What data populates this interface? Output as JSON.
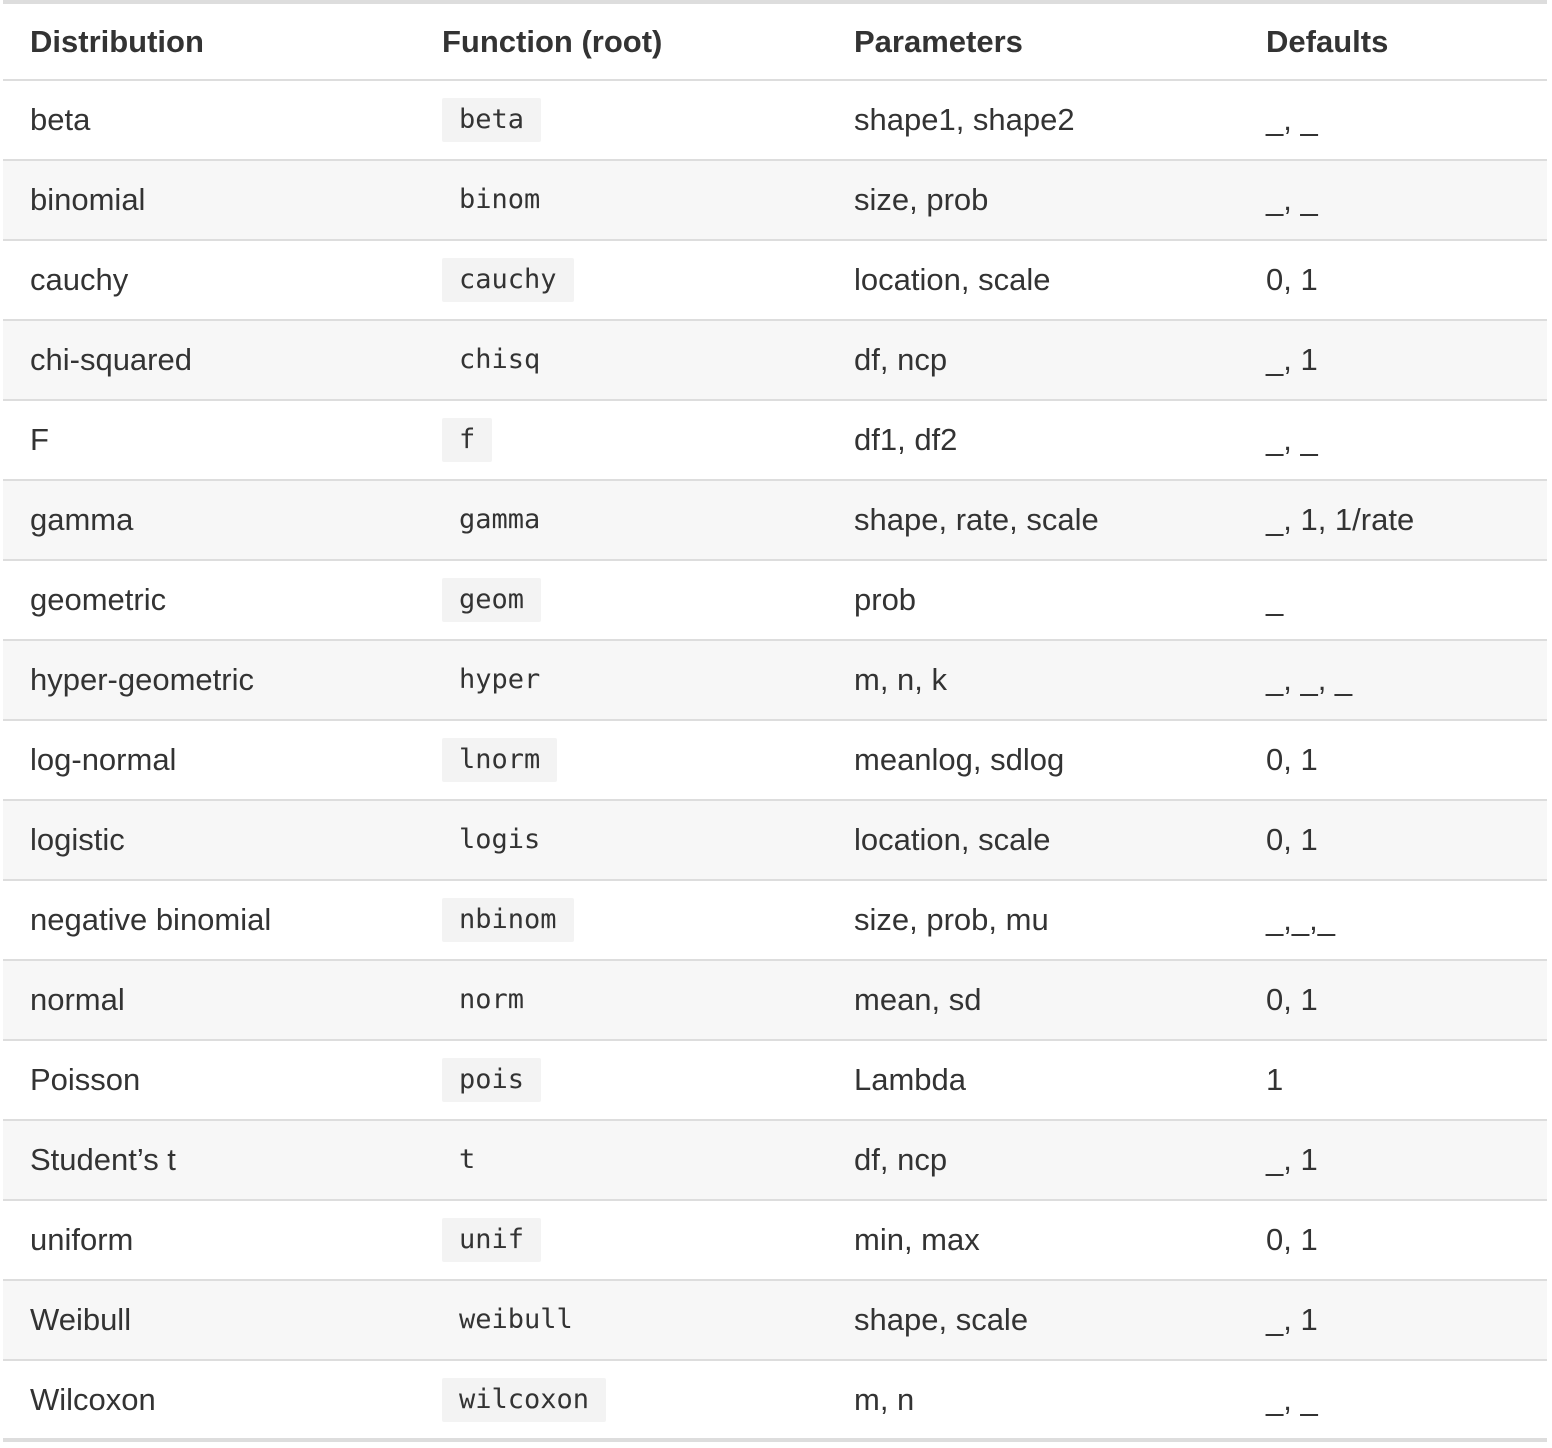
{
  "table": {
    "headers": [
      "Distribution",
      "Function (root)",
      "Parameters",
      "Defaults"
    ],
    "rows": [
      {
        "distribution": "beta",
        "function": "beta",
        "parameters": "shape1, shape2",
        "defaults": "_, _"
      },
      {
        "distribution": "binomial",
        "function": "binom",
        "parameters": "size, prob",
        "defaults": "_, _"
      },
      {
        "distribution": "cauchy",
        "function": "cauchy",
        "parameters": "location, scale",
        "defaults": "0, 1"
      },
      {
        "distribution": "chi-squared",
        "function": "chisq",
        "parameters": "df, ncp",
        "defaults": "_, 1"
      },
      {
        "distribution": "F",
        "function": "f",
        "parameters": "df1, df2",
        "defaults": "_, _"
      },
      {
        "distribution": "gamma",
        "function": "gamma",
        "parameters": "shape, rate, scale",
        "defaults": "_, 1, 1/rate"
      },
      {
        "distribution": "geometric",
        "function": "geom",
        "parameters": "prob",
        "defaults": "_"
      },
      {
        "distribution": "hyper-geometric",
        "function": "hyper",
        "parameters": "m, n, k",
        "defaults": "_, _, _"
      },
      {
        "distribution": "log-normal",
        "function": "lnorm",
        "parameters": "meanlog, sdlog",
        "defaults": "0, 1"
      },
      {
        "distribution": "logistic",
        "function": "logis",
        "parameters": "location, scale",
        "defaults": "0, 1"
      },
      {
        "distribution": "negative binomial",
        "function": "nbinom",
        "parameters": "size, prob, mu",
        "defaults": "_,_,_"
      },
      {
        "distribution": "normal",
        "function": "norm",
        "parameters": "mean, sd",
        "defaults": "0, 1"
      },
      {
        "distribution": "Poisson",
        "function": "pois",
        "parameters": "Lambda",
        "defaults": "1"
      },
      {
        "distribution": "Student’s t",
        "function": "t",
        "parameters": "df, ncp",
        "defaults": "_, 1"
      },
      {
        "distribution": "uniform",
        "function": "unif",
        "parameters": "min, max",
        "defaults": "0, 1"
      },
      {
        "distribution": "Weibull",
        "function": "weibull",
        "parameters": "shape, scale",
        "defaults": "_, 1"
      },
      {
        "distribution": "Wilcoxon",
        "function": "wilcoxon",
        "parameters": "m, n",
        "defaults": "_, _"
      }
    ]
  }
}
